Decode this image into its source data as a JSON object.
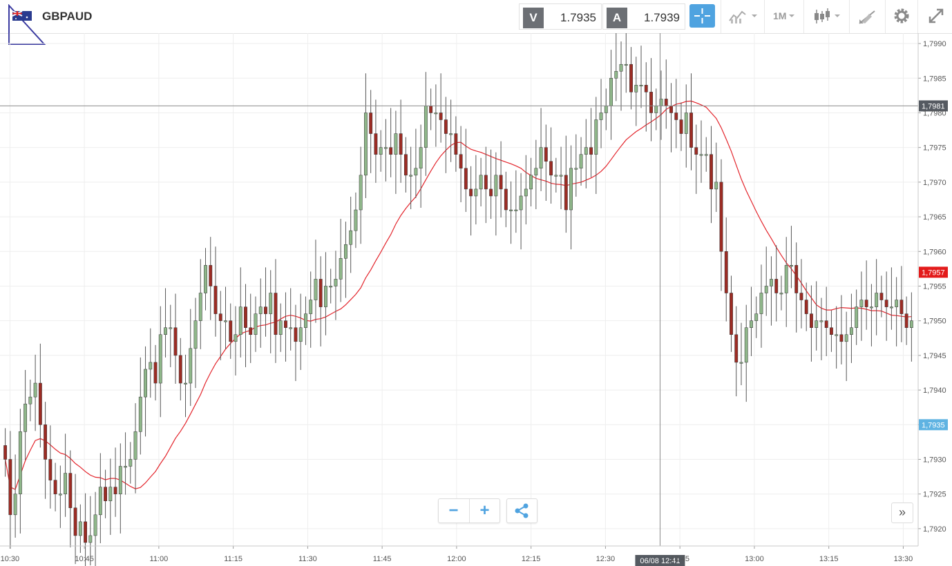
{
  "header": {
    "symbol": "GBPAUD",
    "bid_tag": "V",
    "bid_value": "1.7935",
    "ask_tag": "A",
    "ask_value": "1.7939",
    "timeframe_label": "1M",
    "icons": [
      "flag-uk-au-icon",
      "crosshair-icon",
      "indicators-icon",
      "candlestick-type-icon",
      "drawing-tools-icon",
      "gear-icon",
      "expand-icon"
    ]
  },
  "colors": {
    "bull": "#8fb78a",
    "bear": "#9c2c24",
    "ma_line": "#e3242b",
    "crosshair_label": "#555a61",
    "ma_label": "#e31b1b",
    "bid_label": "#5fb3e2",
    "accent": "#4fa3e0"
  },
  "chart_data": {
    "type": "candlestick",
    "y_ticks": [
      "1,7990",
      "1,7985",
      "1,7980",
      "1,7975",
      "1,7970",
      "1,7965",
      "1,7960",
      "1,7955",
      "1,7950",
      "1,7945",
      "1,7940",
      "1,7935",
      "1,7930",
      "1,7925",
      "1,7920"
    ],
    "y_range": [
      1.79175,
      1.79915
    ],
    "x_ticks": [
      "10:30",
      "10:45",
      "11:00",
      "11:15",
      "11:30",
      "11:45",
      "12:00",
      "12:15",
      "12:30",
      "12:45",
      "13:00",
      "13:15",
      "13:30"
    ],
    "x_range_minutes": [
      "10:28",
      "13:33"
    ],
    "grid": true,
    "crosshair": {
      "time_label": "06/08 12:41",
      "price_label": "1,7981",
      "price": 1.7981
    },
    "price_labels": [
      {
        "label": "1,7957",
        "price": 1.7957,
        "role": "moving-average"
      },
      {
        "label": "1,7935",
        "price": 1.7935,
        "role": "bid"
      }
    ],
    "ohlc_close": [
      1.793,
      1.7922,
      1.7925,
      1.7934,
      1.7938,
      1.7939,
      1.7941,
      1.7935,
      1.793,
      1.7927,
      1.7925,
      1.7925,
      1.7928,
      1.7923,
      1.7919,
      1.7921,
      1.7918,
      1.7919,
      1.7922,
      1.7926,
      1.7924,
      1.7926,
      1.7925,
      1.7929,
      1.7929,
      1.793,
      1.7934,
      1.7939,
      1.7943,
      1.7944,
      1.7941,
      1.7948,
      1.7949,
      1.7949,
      1.7945,
      1.7941,
      1.7941,
      1.7946,
      1.795,
      1.7954,
      1.7958,
      1.7955,
      1.7951,
      1.795,
      1.795,
      1.7947,
      1.7948,
      1.7952,
      1.7949,
      1.7948,
      1.7951,
      1.7952,
      1.7951,
      1.7954,
      1.7948,
      1.795,
      1.7949,
      1.7949,
      1.7947,
      1.7949,
      1.7951,
      1.7953,
      1.7956,
      1.7952,
      1.7955,
      1.7955,
      1.7956,
      1.7959,
      1.7961,
      1.7963,
      1.7966,
      1.7971,
      1.798,
      1.7977,
      1.7974,
      1.7975,
      1.7975,
      1.7974,
      1.7977,
      1.7974,
      1.7971,
      1.7971,
      1.7972,
      1.7975,
      1.7981,
      1.798,
      1.798,
      1.7979,
      1.7977,
      1.7977,
      1.7974,
      1.7972,
      1.7969,
      1.7968,
      1.7969,
      1.7971,
      1.7969,
      1.7968,
      1.7971,
      1.7969,
      1.7966,
      1.7966,
      1.7966,
      1.7968,
      1.7969,
      1.7971,
      1.7972,
      1.7975,
      1.7973,
      1.7971,
      1.7971,
      1.7971,
      1.7966,
      1.7972,
      1.7972,
      1.7974,
      1.7975,
      1.7974,
      1.7979,
      1.798,
      1.7981,
      1.7985,
      1.7986,
      1.7987,
      1.7987,
      1.7983,
      1.7984,
      1.7984,
      1.7983,
      1.798,
      1.7981,
      1.7982,
      1.7981,
      1.798,
      1.7979,
      1.7977,
      1.798,
      1.7975,
      1.7974,
      1.7974,
      1.7974,
      1.7969,
      1.797,
      1.796,
      1.7954,
      1.7948,
      1.7944,
      1.7944,
      1.7949,
      1.795,
      1.7951,
      1.7954,
      1.7955,
      1.7956,
      1.7954,
      1.7954,
      1.7958,
      1.7958,
      1.7954,
      1.7953,
      1.7951,
      1.7949,
      1.795,
      1.795,
      1.7949,
      1.7948,
      1.7948,
      1.7947,
      1.7948,
      1.7949,
      1.7952,
      1.7953,
      1.7952,
      1.7952,
      1.7954,
      1.7953,
      1.7952,
      1.7952,
      1.7953,
      1.7951,
      1.7949,
      1.795
    ]
  },
  "controls": {
    "zoom_out": "−",
    "zoom_in": "+",
    "share_icon": "share-icon",
    "forward": "»"
  }
}
